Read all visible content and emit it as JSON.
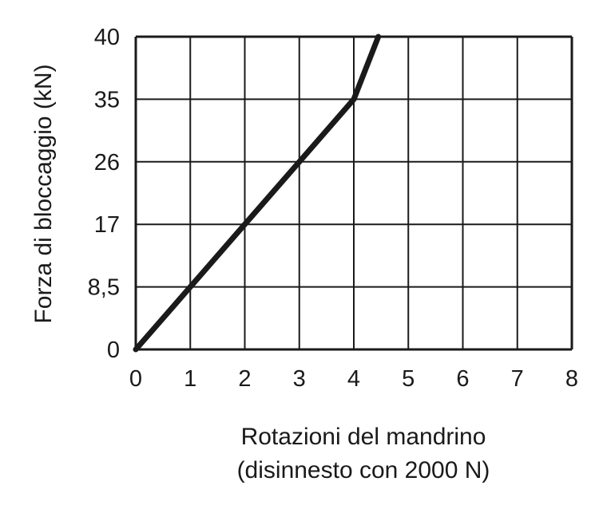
{
  "chart_data": {
    "type": "line",
    "title": "",
    "xlabel": "Rotazioni del mandrino",
    "xlabel_line2": "(disinnesto con 2000 N)",
    "ylabel": "Forza di bloccaggio (kN)",
    "x_ticks": [
      "0",
      "1",
      "2",
      "3",
      "4",
      "5",
      "6",
      "7",
      "8"
    ],
    "y_ticks": [
      "0",
      "8,5",
      "17",
      "26",
      "35",
      "40"
    ],
    "xlim": [
      0,
      8
    ],
    "grid": true,
    "series": [
      {
        "points": [
          {
            "x": 0,
            "y": "0"
          },
          {
            "x": 1,
            "y": "8,5"
          },
          {
            "x": 2,
            "y": "17"
          },
          {
            "x": 3,
            "y": "26"
          },
          {
            "x": 4,
            "y": "35"
          },
          {
            "x": 4.45,
            "y": "40"
          }
        ]
      }
    ]
  }
}
